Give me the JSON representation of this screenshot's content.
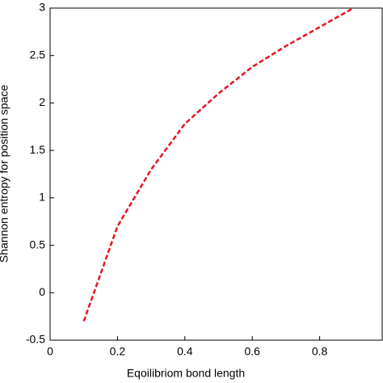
{
  "chart_data": {
    "type": "line",
    "x_label": "Eqoilibriom bond length",
    "y_label": "Shannon entropy for position space",
    "x": [
      0.1,
      0.2,
      0.3,
      0.4,
      0.5,
      0.6,
      0.7,
      0.8,
      0.9
    ],
    "series": [
      {
        "color": "#e8141e",
        "values": [
          -0.3,
          0.7,
          1.3,
          1.78,
          2.1,
          2.38,
          2.6,
          2.8,
          3.0
        ]
      }
    ],
    "xlim": [
      0,
      1
    ],
    "xticks": [
      0,
      0.2,
      0.4,
      0.6,
      0.8
    ],
    "ylim": [
      -0.5,
      3
    ],
    "yticks": [
      -0.5,
      0,
      0.5,
      1,
      1.5,
      2,
      2.5,
      3
    ]
  }
}
